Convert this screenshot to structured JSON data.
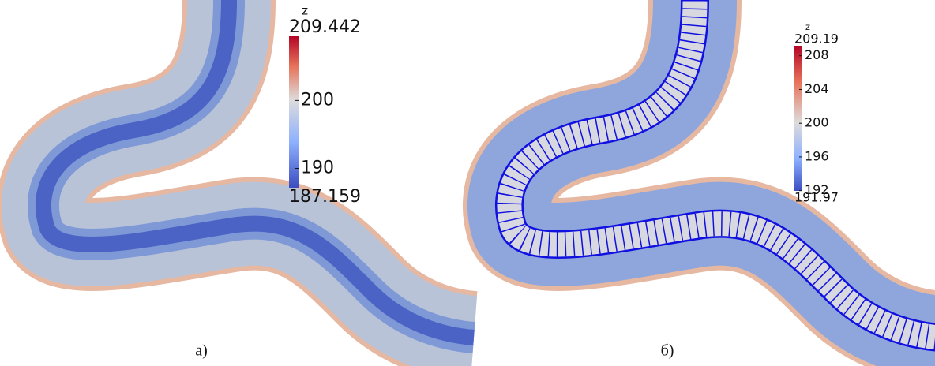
{
  "panels": [
    {
      "caption": "а)",
      "colorbar": {
        "title": "z",
        "max": 209.442,
        "min": 187.159,
        "ticks": [
          200,
          190
        ]
      }
    },
    {
      "caption": "б)",
      "colorbar": {
        "title": "z",
        "max": 209.19,
        "min": 191.97,
        "ticks": [
          208,
          204,
          200,
          196,
          192
        ]
      }
    }
  ]
}
